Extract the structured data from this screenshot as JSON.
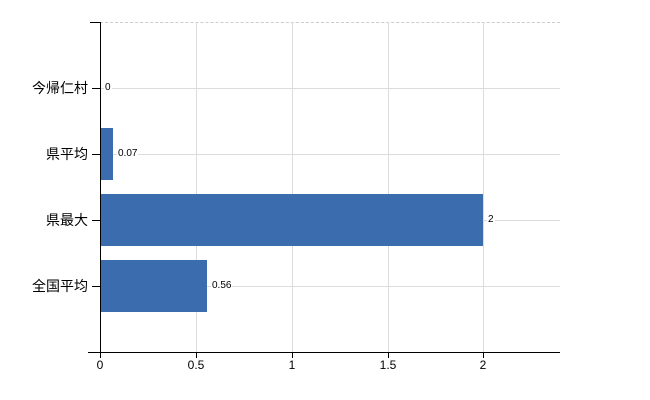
{
  "chart_data": {
    "type": "bar",
    "orientation": "horizontal",
    "title": "",
    "xlabel": "",
    "ylabel": "",
    "categories": [
      "今帰仁村",
      "県平均",
      "県最大",
      "全国平均"
    ],
    "values": [
      0,
      0.07,
      2,
      0.56
    ],
    "value_labels": [
      "0",
      "0.07",
      "2",
      "0.56"
    ],
    "x_ticks": [
      0,
      0.5,
      1,
      1.5,
      2
    ],
    "x_tick_labels": [
      "0",
      "0.5",
      "1",
      "1.5",
      "2"
    ],
    "xlim": [
      0,
      2.4
    ],
    "grid": true,
    "legend": false,
    "colors": {
      "bar": "#3b6cae",
      "axis": "#000000",
      "gridline": "#dcdcdc",
      "top_border": "#cccccc",
      "text": "#000000",
      "background": "#ffffff"
    }
  }
}
